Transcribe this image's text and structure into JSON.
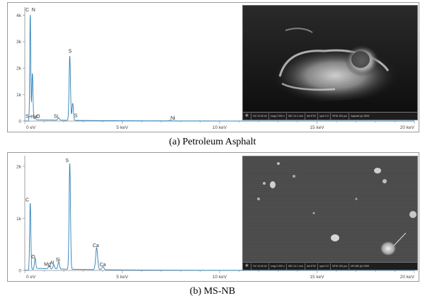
{
  "chart_data": [
    {
      "type": "line",
      "panel": "a",
      "caption": "(a) Petroleum Asphalt",
      "xlabel": "",
      "ylabel": "",
      "xlim": [
        0,
        20
      ],
      "ylim": [
        0,
        4200
      ],
      "x_ticks": [
        "0 eV",
        "5 keV",
        "10 keV",
        "15 keV",
        "20 keV"
      ],
      "y_ticks": [
        {
          "value": 0,
          "label": "0"
        },
        {
          "value": 1000,
          "label": "1k"
        },
        {
          "value": 2000,
          "label": "2k"
        },
        {
          "value": 3000,
          "label": "3k"
        },
        {
          "value": 4000,
          "label": "4k"
        }
      ],
      "peaks": [
        {
          "x": 0.28,
          "y": 4100,
          "w": 0.025
        },
        {
          "x": 0.39,
          "y": 1800,
          "w": 0.03
        },
        {
          "x": 0.53,
          "y": 120,
          "w": 0.03
        },
        {
          "x": 1.74,
          "y": 90,
          "w": 0.04
        },
        {
          "x": 2.31,
          "y": 2450,
          "w": 0.035
        },
        {
          "x": 2.46,
          "y": 650,
          "w": 0.035
        },
        {
          "x": 7.47,
          "y": 25,
          "w": 0.05
        }
      ],
      "peak_labels": [
        {
          "text": "C",
          "x": 0.0,
          "y": 4150
        },
        {
          "text": "N",
          "x": 0.32,
          "y": 4150
        },
        {
          "text": "S-esc",
          "x": 0.0,
          "y": 120
        },
        {
          "text": "O",
          "x": 0.55,
          "y": 120
        },
        {
          "text": "Si",
          "x": 1.45,
          "y": 120
        },
        {
          "text": "S",
          "x": 2.2,
          "y": 2580
        },
        {
          "text": "S",
          "x": 2.5,
          "y": 150
        },
        {
          "text": "Ni",
          "x": 7.45,
          "y": 60
        }
      ],
      "sem_info": {
        "logo": "✲",
        "cells": [
          "HV 10.00 kV",
          "mag 2 000 x",
          "WD 14.1 mm",
          "det ETD",
          "spot 3.0",
          "HFW 100 µm",
          "Asphalt (a) SEM"
        ]
      }
    },
    {
      "type": "line",
      "panel": "b",
      "caption": "(b) MS-NB",
      "xlabel": "",
      "ylabel": "",
      "xlim": [
        0,
        20
      ],
      "ylim": [
        0,
        2150
      ],
      "x_ticks": [
        "0 eV",
        "5 keV",
        "10 keV",
        "15 keV",
        "20 keV"
      ],
      "y_ticks": [
        {
          "value": 0,
          "label": "0"
        },
        {
          "value": 1000,
          "label": "1k"
        },
        {
          "value": 2000,
          "label": "2k"
        }
      ],
      "peaks": [
        {
          "x": 0.28,
          "y": 1300,
          "w": 0.03
        },
        {
          "x": 0.53,
          "y": 200,
          "w": 0.035
        },
        {
          "x": 1.25,
          "y": 60,
          "w": 0.04
        },
        {
          "x": 1.49,
          "y": 80,
          "w": 0.04
        },
        {
          "x": 1.74,
          "y": 140,
          "w": 0.04
        },
        {
          "x": 2.31,
          "y": 2050,
          "w": 0.035
        },
        {
          "x": 3.69,
          "y": 420,
          "w": 0.05
        },
        {
          "x": 4.01,
          "y": 60,
          "w": 0.05
        }
      ],
      "peak_labels": [
        {
          "text": "C",
          "x": 0.0,
          "y": 1330
        },
        {
          "text": "O",
          "x": 0.3,
          "y": 230
        },
        {
          "text": "Mg",
          "x": 0.95,
          "y": 90
        },
        {
          "text": "Al",
          "x": 1.25,
          "y": 115
        },
        {
          "text": "Si",
          "x": 1.55,
          "y": 180
        },
        {
          "text": "S",
          "x": 2.05,
          "y": 2080
        },
        {
          "text": "Ca",
          "x": 3.45,
          "y": 450
        },
        {
          "text": "Ca",
          "x": 3.8,
          "y": 80
        }
      ],
      "sem_info": {
        "logo": "✲",
        "cells": [
          "HV 10.00 kV",
          "mag 2 000 x",
          "WD 14.1 mm",
          "det ETD",
          "spot 3.0",
          "HFW 100 µm",
          "MS-NB (b) SEM"
        ]
      }
    }
  ],
  "colors": {
    "spectrum_line": "#2c7fb8",
    "axis": "#8a8a8a",
    "sem_bg": "#161616"
  }
}
